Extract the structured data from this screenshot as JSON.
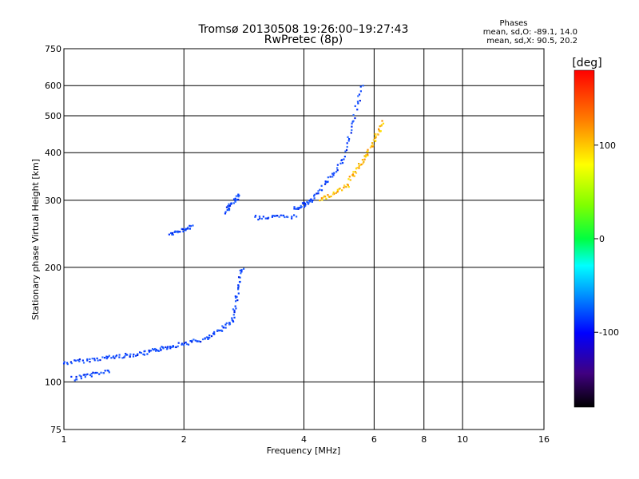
{
  "chart_data": {
    "type": "scatter",
    "title": "Tromsø 20130508 19:26:00–19:27:43",
    "subtitle": "RwPretec (8p)",
    "xlabel": "Frequency [MHz]",
    "ylabel": "Stationary phase Virtual Height [km]",
    "xscale": "log",
    "yscale": "log",
    "xlim": [
      1,
      16
    ],
    "ylim": [
      75,
      750
    ],
    "xticks": [
      1,
      2,
      4,
      6,
      8,
      10,
      16
    ],
    "xtick_labels": [
      "1",
      "2",
      "4",
      "6",
      "8",
      "10",
      "16"
    ],
    "yticks": [
      75,
      100,
      200,
      300,
      400,
      500,
      600,
      750
    ],
    "ytick_labels": [
      "75",
      "100",
      "200",
      "300",
      "400",
      "500",
      "600",
      "750"
    ],
    "grid": true,
    "legend": {
      "title": "Phases",
      "lines": [
        "mean, sd,O: -89.1, 14.0",
        "mean, sd,X:  90.5, 20.2"
      ],
      "position": "top-right"
    },
    "colorbar": {
      "label": "[deg]",
      "range": [
        -180,
        180
      ],
      "ticks": [
        100,
        0,
        -100
      ],
      "tick_labels": [
        "100",
        "0",
        "-100"
      ],
      "position": "right"
    },
    "series": [
      {
        "name": "O-mode",
        "color_value": -89.1,
        "segments": [
          {
            "f": [
              1.0,
              1.3
            ],
            "h": [
              112,
              116
            ]
          },
          {
            "f": [
              1.3,
              1.6
            ],
            "h": [
              116,
              119
            ]
          },
          {
            "f": [
              1.6,
              1.85
            ],
            "h": [
              119,
              124
            ]
          },
          {
            "f": [
              1.85,
              2.3
            ],
            "h": [
              124,
              130
            ]
          },
          {
            "f": [
              2.3,
              2.65
            ],
            "h": [
              130,
              145
            ]
          },
          {
            "f": [
              2.65,
              2.8
            ],
            "h": [
              145,
              200
            ]
          },
          {
            "f": [
              1.05,
              1.3
            ],
            "h": [
              102,
              107
            ]
          },
          {
            "f": [
              1.85,
              2.1
            ],
            "h": [
              244,
              256
            ]
          },
          {
            "f": [
              2.55,
              2.75
            ],
            "h": [
              280,
              310
            ]
          },
          {
            "f": [
              3.0,
              3.8
            ],
            "h": [
              270,
              272
            ]
          },
          {
            "f": [
              3.8,
              4.2
            ],
            "h": [
              285,
              300
            ]
          },
          {
            "f": [
              4.2,
              5.0
            ],
            "h": [
              300,
              380
            ]
          },
          {
            "f": [
              5.0,
              5.6
            ],
            "h": [
              380,
              600
            ]
          }
        ]
      },
      {
        "name": "X-mode",
        "color_value": 90.5,
        "segments": [
          {
            "f": [
              4.4,
              5.2
            ],
            "h": [
              300,
              330
            ]
          },
          {
            "f": [
              5.2,
              5.8
            ],
            "h": [
              340,
              400
            ]
          },
          {
            "f": [
              5.8,
              6.3
            ],
            "h": [
              400,
              480
            ]
          }
        ]
      }
    ]
  }
}
